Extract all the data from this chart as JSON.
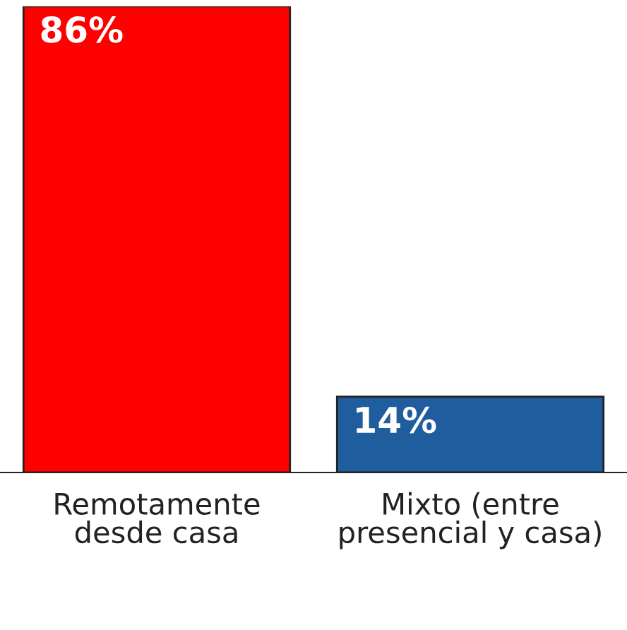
{
  "chart_data": {
    "type": "bar",
    "categories": [
      "Remotamente\ndesde casa",
      "Mixto (entre\npresencial y casa)"
    ],
    "values": [
      86,
      14
    ],
    "colors": [
      "#ff0000",
      "#1f5d9e"
    ],
    "value_labels": [
      "86%",
      "14%"
    ],
    "grid": false,
    "legend": false
  }
}
